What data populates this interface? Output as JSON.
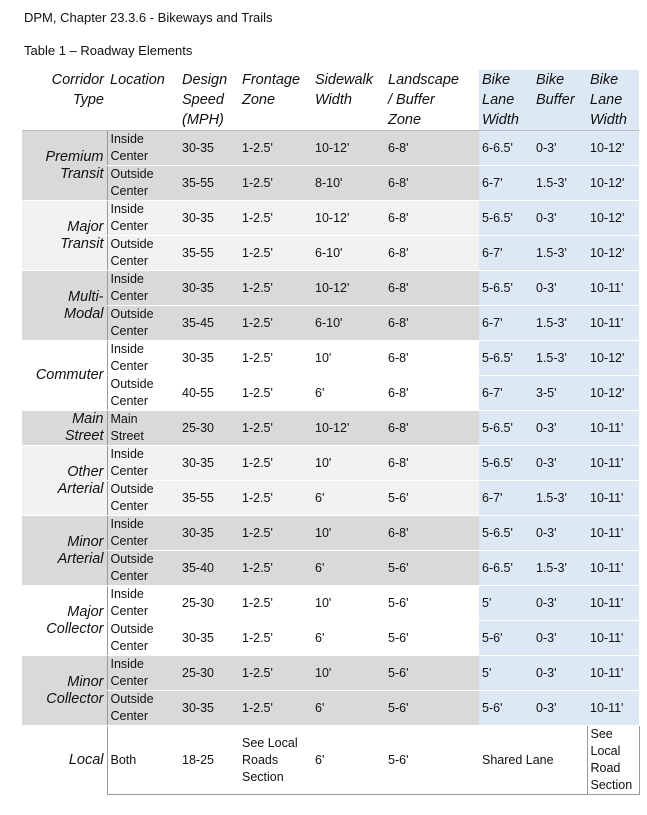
{
  "header": "DPM, Chapter 23.3.6 - Bikeways and Trails",
  "table_title": "Table 1 – Roadway Elements",
  "columns": {
    "corridor": [
      "Corridor",
      "Type"
    ],
    "location": [
      "Location"
    ],
    "speed": [
      "Design",
      "Speed",
      "(MPH)"
    ],
    "frontage": [
      "Frontage",
      "Zone"
    ],
    "sidewalk": [
      "Sidewalk",
      "Width"
    ],
    "landscape": [
      "Landscape",
      "/ Buffer",
      "Zone"
    ],
    "bikelane": [
      "Bike",
      "Lane",
      "Width"
    ],
    "bikebuffer": [
      "Bike",
      "Buffer"
    ],
    "lane": [
      "Bike",
      "Lane",
      "Width"
    ]
  },
  "groups": [
    {
      "name": [
        "Premium",
        "Transit"
      ],
      "shade": "g-dark",
      "rows": [
        {
          "loc": [
            "Inside",
            "Center"
          ],
          "speed": "30-35",
          "frontage": "1-2.5'",
          "sidewalk": "10-12'",
          "landscape": "6-8'",
          "bikelane": "6-6.5'",
          "bikebuffer": "0-3'",
          "lane": "10-12'"
        },
        {
          "loc": [
            "Outside",
            "Center"
          ],
          "speed": "35-55",
          "frontage": "1-2.5'",
          "sidewalk": "8-10'",
          "landscape": "6-8'",
          "bikelane": "6-7'",
          "bikebuffer": "1.5-3'",
          "lane": "10-12'"
        }
      ]
    },
    {
      "name": [
        "Major",
        "Transit"
      ],
      "shade": "g-light",
      "rows": [
        {
          "loc": [
            "Inside",
            "Center"
          ],
          "speed": "30-35",
          "frontage": "1-2.5'",
          "sidewalk": "10-12'",
          "landscape": "6-8'",
          "bikelane": "5-6.5'",
          "bikebuffer": "0-3'",
          "lane": "10-12'"
        },
        {
          "loc": [
            "Outside",
            "Center"
          ],
          "speed": "35-55",
          "frontage": "1-2.5'",
          "sidewalk": "6-10'",
          "landscape": "6-8'",
          "bikelane": "6-7'",
          "bikebuffer": "1.5-3'",
          "lane": "10-12'"
        }
      ]
    },
    {
      "name": [
        "Multi-",
        "Modal"
      ],
      "shade": "g-dark",
      "rows": [
        {
          "loc": [
            "Inside",
            "Center"
          ],
          "speed": "30-35",
          "frontage": "1-2.5'",
          "sidewalk": "10-12'",
          "landscape": "6-8'",
          "bikelane": "5-6.5'",
          "bikebuffer": "0-3'",
          "lane": "10-11'"
        },
        {
          "loc": [
            "Outside",
            "Center"
          ],
          "speed": "35-45",
          "frontage": "1-2.5'",
          "sidewalk": "6-10'",
          "landscape": "6-8'",
          "bikelane": "6-7'",
          "bikebuffer": "1.5-3'",
          "lane": "10-11'"
        }
      ]
    },
    {
      "name": [
        "Commuter"
      ],
      "shade": "g-white",
      "rows": [
        {
          "loc": [
            "Inside",
            "Center"
          ],
          "speed": "30-35",
          "frontage": "1-2.5'",
          "sidewalk": "10'",
          "landscape": "6-8'",
          "bikelane": "5-6.5'",
          "bikebuffer": "1.5-3'",
          "lane": "10-12'"
        },
        {
          "loc": [
            "Outside",
            "Center"
          ],
          "speed": "40-55",
          "frontage": "1-2.5'",
          "sidewalk": "6'",
          "landscape": "6-8'",
          "bikelane": "6-7'",
          "bikebuffer": "3-5'",
          "lane": "10-12'"
        }
      ]
    },
    {
      "name": [
        "Main",
        "Street"
      ],
      "shade": "g-dark",
      "rows": [
        {
          "loc": [
            "Main",
            "Street"
          ],
          "speed": "25-30",
          "frontage": "1-2.5'",
          "sidewalk": "10-12'",
          "landscape": "6-8'",
          "bikelane": "5-6.5'",
          "bikebuffer": "0-3'",
          "lane": "10-11'"
        }
      ]
    },
    {
      "name": [
        "Other",
        "Arterial"
      ],
      "shade": "g-light",
      "rows": [
        {
          "loc": [
            "Inside",
            "Center"
          ],
          "speed": "30-35",
          "frontage": "1-2.5'",
          "sidewalk": "10'",
          "landscape": "6-8'",
          "bikelane": "5-6.5'",
          "bikebuffer": "0-3'",
          "lane": "10-11'"
        },
        {
          "loc": [
            "Outside",
            "Center"
          ],
          "speed": "35-55",
          "frontage": "1-2.5'",
          "sidewalk": "6'",
          "landscape": "5-6'",
          "bikelane": "6-7'",
          "bikebuffer": "1.5-3'",
          "lane": "10-11'"
        }
      ]
    },
    {
      "name": [
        "Minor",
        "Arterial"
      ],
      "shade": "g-dark",
      "rows": [
        {
          "loc": [
            "Inside",
            "Center"
          ],
          "speed": "30-35",
          "frontage": "1-2.5'",
          "sidewalk": "10'",
          "landscape": "6-8'",
          "bikelane": "5-6.5'",
          "bikebuffer": "0-3'",
          "lane": "10-11'"
        },
        {
          "loc": [
            "Outside",
            "Center"
          ],
          "speed": "35-40",
          "frontage": "1-2.5'",
          "sidewalk": "6'",
          "landscape": "5-6'",
          "bikelane": "6-6.5'",
          "bikebuffer": "1.5-3'",
          "lane": "10-11'"
        }
      ]
    },
    {
      "name": [
        "Major",
        "Collector"
      ],
      "shade": "g-white",
      "rows": [
        {
          "loc": [
            "Inside",
            "Center"
          ],
          "speed": "25-30",
          "frontage": "1-2.5'",
          "sidewalk": "10'",
          "landscape": "5-6'",
          "bikelane": "5'",
          "bikebuffer": "0-3'",
          "lane": "10-11'"
        },
        {
          "loc": [
            "Outside",
            "Center"
          ],
          "speed": "30-35",
          "frontage": "1-2.5'",
          "sidewalk": "6'",
          "landscape": "5-6'",
          "bikelane": "5-6'",
          "bikebuffer": "0-3'",
          "lane": "10-11'"
        }
      ]
    },
    {
      "name": [
        "Minor",
        "Collector"
      ],
      "shade": "g-dark",
      "rows": [
        {
          "loc": [
            "Inside",
            "Center"
          ],
          "speed": "25-30",
          "frontage": "1-2.5'",
          "sidewalk": "10'",
          "landscape": "5-6'",
          "bikelane": "5'",
          "bikebuffer": "0-3'",
          "lane": "10-11'"
        },
        {
          "loc": [
            "Outside",
            "Center"
          ],
          "speed": "30-35",
          "frontage": "1-2.5'",
          "sidewalk": "6'",
          "landscape": "5-6'",
          "bikelane": "5-6'",
          "bikebuffer": "0-3'",
          "lane": "10-11'"
        }
      ]
    }
  ],
  "local": {
    "name": "Local",
    "loc": "Both",
    "speed": "18-25",
    "frontage": [
      "See Local",
      "Roads",
      "Section"
    ],
    "sidewalk": "6'",
    "landscape": "5-6'",
    "bike": "Shared Lane",
    "lane": [
      "See",
      "Local",
      "Road",
      "Section"
    ]
  }
}
